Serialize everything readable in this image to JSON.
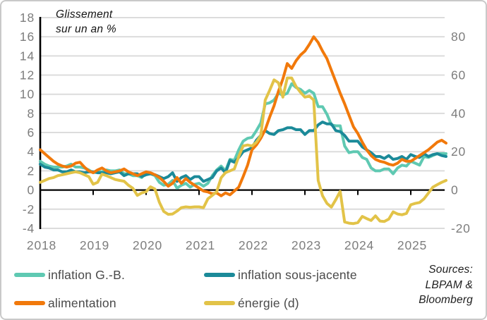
{
  "title": {
    "line1": "Glissement",
    "line2": "sur un an %"
  },
  "sources": {
    "line1": "Sources:",
    "line2": "LBPAM &",
    "line3": "Bloomberg"
  },
  "chart_data": {
    "type": "line",
    "title": "Glissement sur un an %",
    "x_start": "2018-01",
    "x_freq": "monthly",
    "x_year_labels": [
      "2018",
      "2019",
      "2020",
      "2021",
      "2022",
      "2023",
      "2024",
      "2025"
    ],
    "grid": true,
    "legend_position": "bottom",
    "axes": {
      "left": {
        "ticks": [
          18,
          16,
          14,
          12,
          10,
          8,
          6,
          4,
          2,
          0,
          -2,
          -4
        ],
        "range": [
          -4,
          18
        ]
      },
      "right": {
        "ticks": [
          80,
          60,
          40,
          20,
          0,
          -20
        ],
        "range": [
          -20,
          90
        ],
        "scale_vs_left": 5,
        "note": "énergie (d) = axe de droite"
      }
    },
    "colors": {
      "grid": "#dcdcdc",
      "axis": "#000000",
      "tick_text": "#7d7d7d"
    },
    "series": [
      {
        "name": "inflation G.-B.",
        "color": "#5FC9B2",
        "axis": "left",
        "values": [
          3.0,
          2.7,
          2.5,
          2.4,
          2.4,
          2.4,
          2.5,
          2.7,
          2.4,
          2.4,
          2.3,
          2.1,
          1.8,
          1.9,
          1.9,
          2.1,
          2.0,
          2.0,
          2.1,
          1.7,
          1.7,
          1.5,
          1.5,
          1.3,
          1.8,
          1.7,
          1.5,
          0.8,
          0.5,
          0.6,
          1.0,
          0.2,
          0.5,
          0.7,
          0.3,
          0.6,
          0.7,
          0.4,
          0.7,
          1.5,
          2.1,
          2.5,
          2.0,
          3.2,
          3.1,
          4.2,
          5.1,
          5.4,
          5.5,
          6.2,
          7.0,
          9.0,
          9.1,
          9.4,
          10.1,
          9.9,
          10.1,
          11.1,
          10.7,
          10.5,
          10.1,
          10.4,
          10.1,
          8.7,
          8.7,
          7.9,
          6.8,
          6.7,
          6.7,
          4.6,
          3.9,
          4.0,
          4.0,
          3.4,
          3.2,
          2.3,
          2.0,
          2.0,
          2.2,
          2.2,
          1.7,
          2.3,
          2.6,
          2.5,
          3.0,
          2.8,
          2.6,
          3.5,
          3.4,
          3.6,
          3.8,
          3.8,
          3.8
        ]
      },
      {
        "name": "inflation sous-jacente",
        "color": "#1B8A99",
        "axis": "left",
        "values": [
          2.7,
          2.4,
          2.3,
          2.1,
          2.1,
          1.9,
          1.9,
          2.1,
          1.9,
          1.9,
          1.8,
          1.9,
          1.9,
          1.8,
          1.8,
          1.8,
          1.7,
          1.8,
          1.9,
          1.5,
          1.7,
          1.7,
          1.7,
          1.4,
          1.6,
          1.7,
          1.6,
          1.4,
          1.2,
          1.4,
          1.8,
          0.9,
          1.3,
          1.5,
          1.1,
          1.4,
          1.4,
          0.9,
          1.1,
          1.3,
          2.0,
          2.3,
          1.8,
          3.1,
          2.9,
          3.4,
          4.0,
          4.2,
          4.4,
          5.2,
          5.7,
          6.2,
          5.9,
          5.8,
          6.2,
          6.3,
          6.5,
          6.5,
          6.3,
          6.3,
          5.8,
          6.2,
          6.2,
          6.8,
          7.1,
          6.9,
          6.9,
          6.2,
          6.1,
          5.7,
          5.1,
          5.1,
          5.1,
          4.5,
          4.2,
          3.9,
          3.5,
          3.5,
          3.3,
          3.6,
          3.2,
          3.3,
          3.5,
          3.2,
          3.7,
          3.5,
          3.4,
          3.8,
          3.5,
          3.7,
          3.8,
          3.6,
          3.5
        ]
      },
      {
        "name": "alimentation",
        "color": "#F1790B",
        "axis": "left",
        "values": [
          4.2,
          3.8,
          3.4,
          3.0,
          2.7,
          2.5,
          2.4,
          2.5,
          2.8,
          2.9,
          2.4,
          2.0,
          1.8,
          2.1,
          2.3,
          2.0,
          1.8,
          1.9,
          2.0,
          2.2,
          1.9,
          1.7,
          1.5,
          1.7,
          1.9,
          1.8,
          1.6,
          1.3,
          0.9,
          0.4,
          0.7,
          1.3,
          0.7,
          1.2,
          0.8,
          0.5,
          0.2,
          -0.1,
          -0.2,
          -0.4,
          -0.3,
          -0.6,
          -0.3,
          -0.5,
          -0.1,
          0.3,
          1.4,
          2.6,
          4.2,
          4.7,
          5.4,
          6.3,
          7.6,
          8.8,
          10.3,
          11.6,
          13.2,
          12.7,
          13.5,
          14.1,
          14.5,
          15.2,
          16.0,
          15.4,
          14.5,
          13.7,
          12.5,
          11.3,
          10.1,
          9.0,
          7.8,
          6.6,
          5.9,
          5.0,
          4.2,
          3.6,
          3.2,
          3.0,
          2.9,
          2.7,
          2.6,
          2.8,
          3.2,
          3.0,
          3.0,
          3.3,
          3.6,
          3.9,
          4.2,
          4.6,
          5.0,
          5.2,
          4.9
        ]
      },
      {
        "name": "énergie (d)",
        "color": "#E2C348",
        "axis": "right",
        "values": [
          4,
          5,
          6,
          6.5,
          7.5,
          8,
          8.5,
          9,
          9.5,
          9,
          8,
          7,
          3,
          4,
          8.3,
          7.5,
          6.5,
          5.5,
          5,
          4.6,
          2.5,
          0.9,
          -2.8,
          -1.5,
          -0.9,
          1.7,
          0.5,
          -6.4,
          -11.2,
          -12.7,
          -12.5,
          -11,
          -9.2,
          -8.8,
          -9,
          -8.8,
          -8.8,
          -9.2,
          -4.6,
          -2.8,
          -0.9,
          6.4,
          9.1,
          10,
          11,
          17.5,
          23,
          23.5,
          23,
          25,
          28.5,
          47,
          52,
          57.5,
          56,
          48.5,
          58.5,
          58.5,
          54,
          51,
          48.5,
          49,
          47,
          5,
          -3,
          -7,
          -8.9,
          -5,
          -0.7,
          -16.7,
          -17.3,
          -17.5,
          -17,
          -13.8,
          -14.9,
          -15.9,
          -13.5,
          -16.2,
          -16.4,
          -15.2,
          -11.4,
          -12.5,
          -12.9,
          -12.2,
          -7.7,
          -7.0,
          -6.5,
          -4.6,
          -1.6,
          1.5,
          2.8,
          4.0,
          5.0
        ]
      }
    ]
  }
}
